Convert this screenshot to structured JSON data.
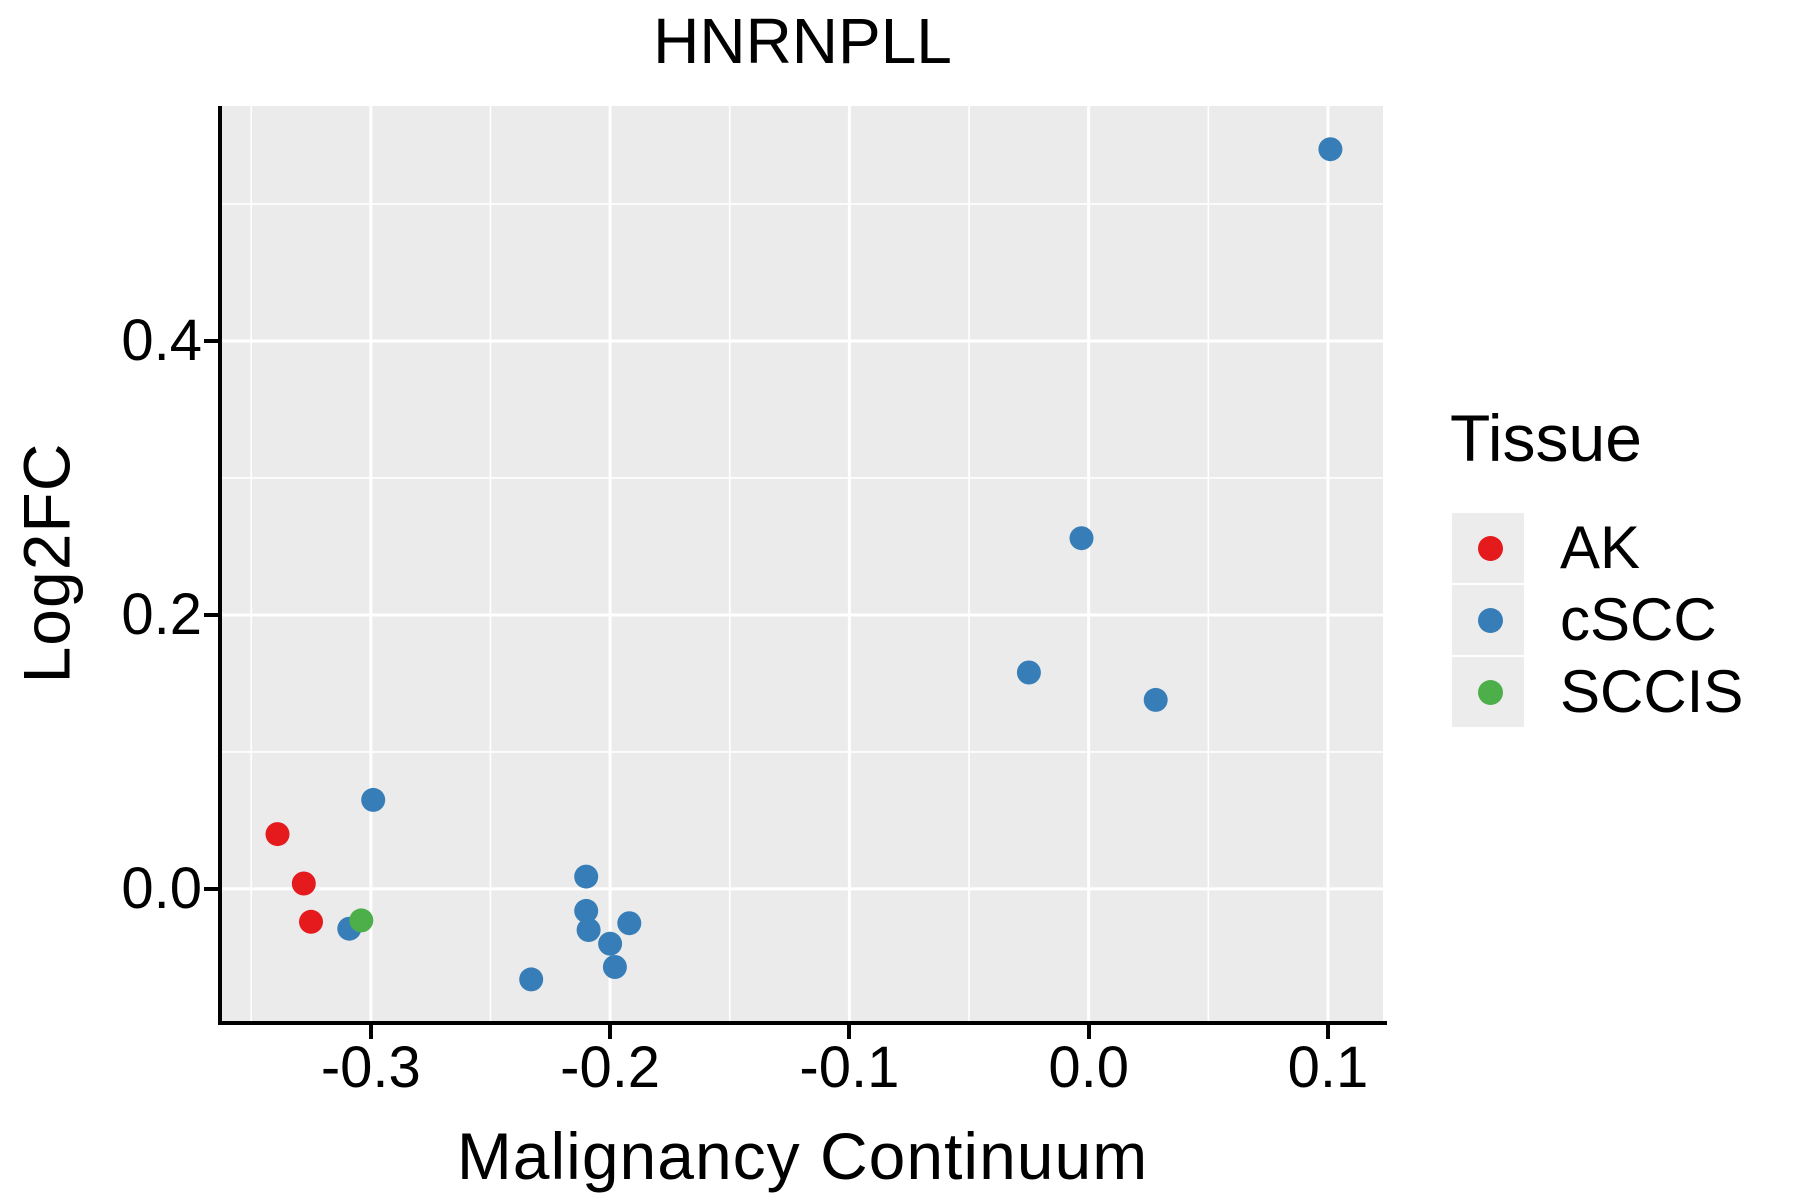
{
  "title": "HNRNPLL",
  "x_axis": {
    "label": "Malignancy Continuum",
    "ticks": [
      {
        "v": -0.3,
        "label": "-0.3"
      },
      {
        "v": -0.2,
        "label": "-0.2"
      },
      {
        "v": -0.1,
        "label": "-0.1"
      },
      {
        "v": 0.0,
        "label": "0.0"
      },
      {
        "v": 0.1,
        "label": "0.1"
      }
    ],
    "minor_ticks": [
      -0.35,
      -0.25,
      -0.15,
      -0.05,
      0.05
    ]
  },
  "y_axis": {
    "label": "Log2FC",
    "ticks": [
      {
        "v": 0.0,
        "label": "0.0"
      },
      {
        "v": 0.2,
        "label": "0.2"
      },
      {
        "v": 0.4,
        "label": "0.4"
      }
    ],
    "minor_ticks": [
      0.1,
      0.3,
      0.5
    ]
  },
  "legend": {
    "title": "Tissue",
    "entries": [
      {
        "label": "AK",
        "color": "#E41A1C"
      },
      {
        "label": "cSCC",
        "color": "#377EB8"
      },
      {
        "label": "SCCIS",
        "color": "#4DAF4A"
      }
    ]
  },
  "style": {
    "panel_background": "#EBEBEB",
    "grid_color": "#FFFFFF",
    "axis_color": "#000000",
    "text_color": "#000000"
  },
  "chart_data": {
    "type": "scatter",
    "title": "HNRNPLL",
    "xlabel": "Malignancy Continuum",
    "ylabel": "Log2FC",
    "xlim": [
      -0.3622,
      0.123
    ],
    "ylim": [
      -0.0964,
      0.5715
    ],
    "grid": true,
    "legend_position": "right",
    "point_radius_px": 12,
    "series": [
      {
        "name": "AK",
        "color": "#E41A1C",
        "points": [
          [
            -0.339,
            0.04
          ],
          [
            -0.328,
            0.004
          ],
          [
            -0.325,
            -0.024
          ]
        ]
      },
      {
        "name": "cSCC",
        "color": "#377EB8",
        "points": [
          [
            -0.309,
            -0.029
          ],
          [
            -0.299,
            0.065
          ],
          [
            -0.233,
            -0.066
          ],
          [
            -0.21,
            0.009
          ],
          [
            -0.21,
            -0.016
          ],
          [
            -0.209,
            -0.03
          ],
          [
            -0.2,
            -0.04
          ],
          [
            -0.198,
            -0.057
          ],
          [
            -0.192,
            -0.025
          ],
          [
            -0.025,
            0.158
          ],
          [
            -0.003,
            0.256
          ],
          [
            0.028,
            0.138
          ],
          [
            0.101,
            0.54
          ]
        ]
      },
      {
        "name": "SCCIS",
        "color": "#4DAF4A",
        "points": [
          [
            -0.304,
            -0.023
          ]
        ]
      }
    ]
  }
}
